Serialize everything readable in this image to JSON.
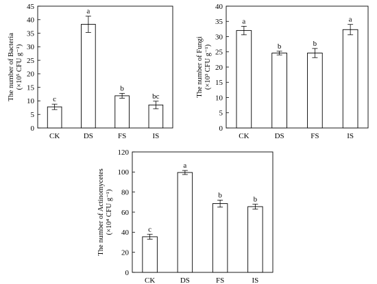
{
  "chart_data": [
    {
      "type": "bar",
      "categories": [
        "CK",
        "DS",
        "FS",
        "IS"
      ],
      "values": [
        7.8,
        38.3,
        11.9,
        8.5
      ],
      "errors": [
        1.0,
        3.0,
        0.9,
        1.4
      ],
      "letters": [
        "c",
        "a",
        "b",
        "bc"
      ],
      "ylim": [
        0,
        45
      ],
      "yticks": [
        0,
        5,
        10,
        15,
        20,
        25,
        30,
        35,
        40,
        45
      ],
      "ylabel_line1": "The number of Bacteria",
      "ylabel_line2": "(×10⁵ CFU g⁻¹)",
      "xlabel": "",
      "bar_color": "#ffffff",
      "edge_color": "#000000"
    },
    {
      "type": "bar",
      "categories": [
        "CK",
        "DS",
        "FS",
        "IS"
      ],
      "values": [
        32.0,
        24.6,
        24.6,
        32.3
      ],
      "errors": [
        1.4,
        0.6,
        1.5,
        1.7
      ],
      "letters": [
        "a",
        "b",
        "b",
        "a"
      ],
      "ylim": [
        0,
        40
      ],
      "yticks": [
        0,
        5,
        10,
        15,
        20,
        25,
        30,
        35,
        40
      ],
      "ylabel_line1": "The number of Fungi",
      "ylabel_line2": "(×10³ CFU g⁻¹)",
      "xlabel": "",
      "bar_color": "#ffffff",
      "edge_color": "#000000"
    },
    {
      "type": "bar",
      "categories": [
        "CK",
        "DS",
        "FS",
        "IS"
      ],
      "values": [
        35.5,
        99.5,
        68.5,
        65.5
      ],
      "errors": [
        2.5,
        2.0,
        3.5,
        2.5
      ],
      "letters": [
        "c",
        "a",
        "b",
        "b"
      ],
      "ylim": [
        0,
        120
      ],
      "yticks": [
        0,
        20,
        40,
        60,
        80,
        100,
        120
      ],
      "ylabel_line1": "The number of Actinomycetes",
      "ylabel_line2": "(×10⁴ CFU g⁻¹)",
      "xlabel": "",
      "bar_color": "#ffffff",
      "edge_color": "#000000"
    }
  ]
}
